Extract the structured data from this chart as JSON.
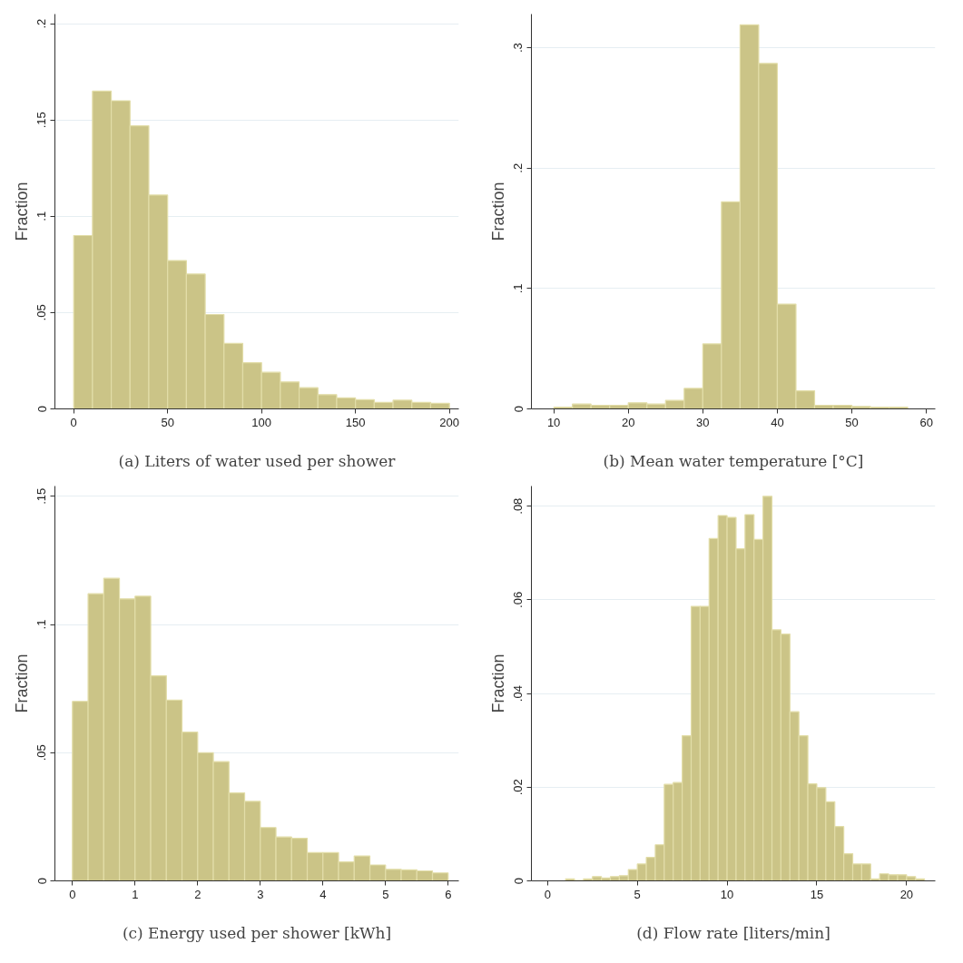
{
  "chart_data": [
    {
      "type": "histogram",
      "xlabel": "(a) Liters of water used per shower",
      "ylabel": "Fraction",
      "color": "#cbc487",
      "grid": "y",
      "bins": [
        0,
        10,
        20,
        30,
        40,
        50,
        60,
        70,
        80,
        90,
        100,
        110,
        120,
        130,
        140,
        150,
        160,
        170,
        180,
        190,
        200
      ],
      "values": [
        0.09,
        0.165,
        0.16,
        0.147,
        0.111,
        0.077,
        0.07,
        0.049,
        0.034,
        0.024,
        0.019,
        0.014,
        0.011,
        0.0074,
        0.0057,
        0.0048,
        0.0034,
        0.0045,
        0.0034,
        0.0029
      ],
      "xlim": [
        -10,
        205
      ],
      "ylim": [
        0,
        0.205
      ],
      "xticks": [
        0,
        50,
        100,
        150,
        200
      ],
      "yticks": [
        0,
        {
          "value": 0.05,
          "label": ".05"
        },
        {
          "value": 0.1,
          "label": ".1"
        },
        {
          "value": 0.15,
          "label": ".15"
        },
        {
          "value": 0.2,
          "label": ".2"
        }
      ]
    },
    {
      "type": "histogram",
      "xlabel": "(b) Mean water temperature [°C]",
      "ylabel": "Fraction",
      "color": "#cbc487",
      "grid": "y",
      "bins": [
        10,
        12.5,
        15,
        17.5,
        20,
        22.5,
        25,
        27.5,
        30,
        32.5,
        35,
        37.5,
        40,
        42.5,
        45,
        47.5,
        50,
        52.5,
        55,
        57.5
      ],
      "values": [
        0.0014,
        0.004,
        0.003,
        0.003,
        0.005,
        0.004,
        0.007,
        0.017,
        0.054,
        0.172,
        0.319,
        0.287,
        0.087,
        0.015,
        0.003,
        0.003,
        0.002,
        0.0014,
        0.0014
      ],
      "xlim": [
        7,
        61.2
      ],
      "ylim": [
        0,
        0.328
      ],
      "xticks": [
        10,
        20,
        30,
        40,
        50,
        60
      ],
      "yticks": [
        0,
        {
          "value": 0.1,
          "label": ".1"
        },
        {
          "value": 0.2,
          "label": ".2"
        },
        {
          "value": 0.3,
          "label": ".3"
        }
      ]
    },
    {
      "type": "histogram",
      "xlabel": "(c) Energy used per shower [kWh]",
      "ylabel": "Fraction",
      "color": "#cbc487",
      "grid": "y",
      "bins": [
        0,
        0.25,
        0.5,
        0.75,
        1,
        1.25,
        1.5,
        1.75,
        2,
        2.25,
        2.5,
        2.75,
        3,
        3.25,
        3.5,
        3.75,
        4,
        4.25,
        4.5,
        4.75,
        5,
        5.25,
        5.5,
        5.75,
        6
      ],
      "values": [
        0.07,
        0.112,
        0.118,
        0.11,
        0.111,
        0.08,
        0.0705,
        0.058,
        0.05,
        0.0465,
        0.0343,
        0.031,
        0.0208,
        0.0171,
        0.0166,
        0.011,
        0.011,
        0.0074,
        0.0097,
        0.0062,
        0.0045,
        0.0043,
        0.0039,
        0.0031
      ],
      "xlim": [
        -0.28,
        6.17
      ],
      "ylim": [
        0,
        0.154
      ],
      "xticks": [
        0,
        1,
        2,
        3,
        4,
        5,
        6
      ],
      "yticks": [
        0,
        {
          "value": 0.05,
          "label": ".05"
        },
        {
          "value": 0.1,
          "label": ".1"
        },
        {
          "value": 0.15,
          "label": ".15"
        }
      ]
    },
    {
      "type": "histogram",
      "xlabel": "(d) Flow rate [liters/min]",
      "ylabel": "Fraction",
      "color": "#cbc487",
      "grid": "y",
      "bins": [
        1,
        1.5,
        2,
        2.5,
        3,
        3.5,
        4,
        4.5,
        5,
        5.5,
        6,
        6.5,
        7,
        7.5,
        8,
        8.5,
        9,
        9.5,
        10,
        10.5,
        11,
        11.5,
        12,
        12.5,
        13,
        13.5,
        14,
        14.5,
        15,
        15.5,
        16,
        16.5,
        17,
        17.5,
        18,
        18.5,
        19,
        19.5,
        20,
        20.5,
        21
      ],
      "values": [
        0.0004,
        0.0001,
        0.0004,
        0.0009,
        0.0006,
        0.0009,
        0.0011,
        0.0024,
        0.0036,
        0.005,
        0.0077,
        0.0206,
        0.021,
        0.031,
        0.0586,
        0.0586,
        0.0731,
        0.078,
        0.0776,
        0.0709,
        0.0782,
        0.0729,
        0.0821,
        0.0536,
        0.0527,
        0.0361,
        0.031,
        0.0207,
        0.0199,
        0.0169,
        0.0116,
        0.0058,
        0.0036,
        0.0036,
        0.0004,
        0.0015,
        0.0013,
        0.0013,
        0.0009,
        0.0004
      ],
      "xlim": [
        -0.9,
        21.6
      ],
      "ylim": [
        0,
        0.0843
      ],
      "xticks": [
        0,
        5,
        10,
        15,
        20
      ],
      "yticks": [
        0,
        {
          "value": 0.02,
          "label": ".02"
        },
        {
          "value": 0.04,
          "label": ".04"
        },
        {
          "value": 0.06,
          "label": ".06"
        },
        {
          "value": 0.08,
          "label": ".08"
        }
      ]
    }
  ]
}
